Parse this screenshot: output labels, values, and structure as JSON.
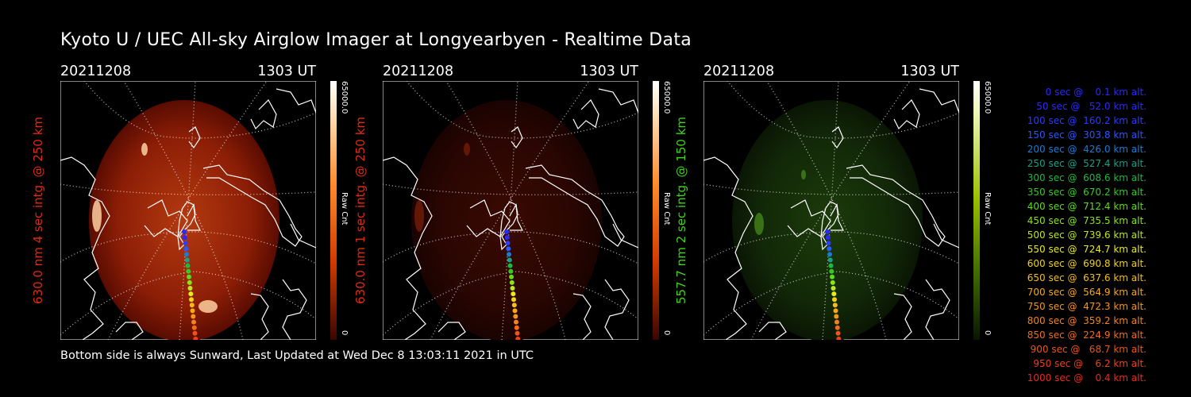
{
  "title": "Kyoto U / UEC All-sky Airglow Imager at Longyearbyen - Realtime Data",
  "footer": "Bottom side is always Sunward, Last Updated at Wed Dec  8 13:03:11 2021 in UTC",
  "panels": [
    {
      "date": "20211208",
      "time": "1303 UT",
      "label": "630.0 nm 4 sec intg. @ 250 km",
      "label_color": "#e02a10",
      "cbar_max": "65000.0",
      "cbar_min": "0",
      "cbar_unit": "Raw Cnt",
      "theme": "red"
    },
    {
      "date": "20211208",
      "time": "1303 UT",
      "label": "630.0 nm 1 sec intg. @ 250 km",
      "label_color": "#e02a10",
      "cbar_max": "65000.0",
      "cbar_min": "0",
      "cbar_unit": "Raw Cnt",
      "theme": "darkred"
    },
    {
      "date": "20211208",
      "time": "1303 UT",
      "label": "557.7 nm 2 sec intg. @ 150 km",
      "label_color": "#3fd21a",
      "cbar_max": "65000.0",
      "cbar_min": "0",
      "cbar_unit": "Raw Cnt",
      "theme": "green"
    }
  ],
  "legend": [
    {
      "text": "   0 sec @    0.1 km alt.",
      "color": "#2a2aff"
    },
    {
      "text": "  50 sec @   52.0 km alt.",
      "color": "#2a2aff"
    },
    {
      "text": " 100 sec @  160.2 km alt.",
      "color": "#2a3cff"
    },
    {
      "text": " 150 sec @  303.8 km alt.",
      "color": "#2a58ff"
    },
    {
      "text": " 200 sec @  426.0 km alt.",
      "color": "#1a7cd6"
    },
    {
      "text": " 250 sec @  527.4 km alt.",
      "color": "#18a088"
    },
    {
      "text": " 300 sec @  608.6 km alt.",
      "color": "#20b840"
    },
    {
      "text": " 350 sec @  670.2 km alt.",
      "color": "#32cc22"
    },
    {
      "text": " 400 sec @  712.4 km alt.",
      "color": "#5cdc1a"
    },
    {
      "text": " 450 sec @  735.5 km alt.",
      "color": "#8ae41a"
    },
    {
      "text": " 500 sec @  739.6 km alt.",
      "color": "#bce81a"
    },
    {
      "text": " 550 sec @  724.7 km alt.",
      "color": "#e8ea1a"
    },
    {
      "text": " 600 sec @  690.8 km alt.",
      "color": "#f2d21a"
    },
    {
      "text": " 650 sec @  637.6 km alt.",
      "color": "#f4be1a"
    },
    {
      "text": " 700 sec @  564.9 km alt.",
      "color": "#f6aa1a"
    },
    {
      "text": " 750 sec @  472.3 km alt.",
      "color": "#f6961a"
    },
    {
      "text": " 800 sec @  359.2 km alt.",
      "color": "#f4821a"
    },
    {
      "text": " 850 sec @  224.9 km alt.",
      "color": "#f26c1a"
    },
    {
      "text": " 900 sec @   68.7 km alt.",
      "color": "#f0541a"
    },
    {
      "text": " 950 sec @    6.2 km alt.",
      "color": "#ee401a"
    },
    {
      "text": "1000 sec @    0.4 km alt.",
      "color": "#ec2a1a"
    }
  ]
}
